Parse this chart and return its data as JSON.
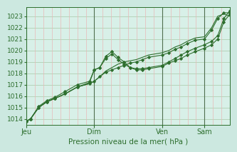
{
  "bg_color": "#cce8e0",
  "plot_bg_color": "#d8f0e8",
  "grid_color_h": "#a8c8a8",
  "grid_color_v_minor": "#e8b8b8",
  "grid_color_v_major": "#507050",
  "line_color": "#2d6e2d",
  "marker_color": "#2d6e2d",
  "xlabel": "Pression niveau de la mer( hPa )",
  "ylim": [
    1013.5,
    1023.8
  ],
  "yticks": [
    1014,
    1015,
    1016,
    1017,
    1018,
    1019,
    1020,
    1021,
    1022,
    1023
  ],
  "day_labels": [
    "Jeu",
    "Dim",
    "Ven",
    "Sam"
  ],
  "day_positions": [
    0.0,
    0.333,
    0.667,
    0.875
  ],
  "minor_positions": [
    0.0,
    0.042,
    0.083,
    0.125,
    0.167,
    0.208,
    0.25,
    0.292,
    0.333,
    0.375,
    0.417,
    0.458,
    0.5,
    0.542,
    0.583,
    0.625,
    0.667,
    0.708,
    0.75,
    0.792,
    0.833,
    0.875,
    0.917,
    0.958,
    1.0
  ],
  "series": {
    "s0_x": [
      0.0,
      0.02,
      0.06,
      0.1,
      0.14,
      0.19,
      0.25,
      0.31,
      0.333,
      0.36,
      0.39,
      0.42,
      0.45,
      0.48,
      0.51,
      0.54,
      0.57,
      0.6,
      0.667,
      0.7,
      0.73,
      0.76,
      0.79,
      0.83,
      0.875,
      0.91,
      0.94,
      0.97,
      1.0
    ],
    "s0_y": [
      1013.8,
      1014.0,
      1015.0,
      1015.5,
      1015.8,
      1016.2,
      1016.8,
      1017.1,
      1017.3,
      1017.7,
      1018.2,
      1018.5,
      1018.8,
      1019.0,
      1019.1,
      1019.2,
      1019.4,
      1019.6,
      1019.8,
      1020.0,
      1020.3,
      1020.5,
      1020.8,
      1021.1,
      1021.2,
      1022.0,
      1023.0,
      1023.2,
      1023.0
    ],
    "s1_x": [
      0.0,
      0.02,
      0.06,
      0.1,
      0.14,
      0.19,
      0.25,
      0.31,
      0.333,
      0.36,
      0.39,
      0.42,
      0.45,
      0.48,
      0.51,
      0.54,
      0.57,
      0.6,
      0.667,
      0.7,
      0.73,
      0.76,
      0.79,
      0.83,
      0.875,
      0.91,
      0.94,
      0.97,
      1.0
    ],
    "s1_y": [
      1013.8,
      1014.0,
      1015.0,
      1015.5,
      1015.8,
      1016.2,
      1016.8,
      1017.1,
      1017.3,
      1017.7,
      1018.1,
      1018.3,
      1018.5,
      1018.7,
      1018.9,
      1019.0,
      1019.2,
      1019.4,
      1019.6,
      1019.8,
      1020.1,
      1020.3,
      1020.6,
      1020.9,
      1021.0,
      1021.8,
      1022.8,
      1023.3,
      1023.3
    ],
    "s2_x": [
      0.0,
      0.02,
      0.06,
      0.1,
      0.14,
      0.19,
      0.25,
      0.31,
      0.333,
      0.36,
      0.39,
      0.42,
      0.45,
      0.48,
      0.51,
      0.54,
      0.57,
      0.6,
      0.667,
      0.7,
      0.73,
      0.76,
      0.79,
      0.83,
      0.875,
      0.91,
      0.94,
      0.97,
      1.0
    ],
    "s2_y": [
      1013.8,
      1014.0,
      1015.0,
      1015.5,
      1015.8,
      1016.2,
      1016.8,
      1017.2,
      1018.3,
      1018.5,
      1019.3,
      1019.7,
      1019.2,
      1018.8,
      1018.5,
      1018.3,
      1018.3,
      1018.4,
      1018.6,
      1018.9,
      1019.1,
      1019.3,
      1019.6,
      1019.9,
      1020.2,
      1020.5,
      1021.0,
      1022.5,
      1023.2
    ],
    "s3_x": [
      0.0,
      0.02,
      0.06,
      0.1,
      0.14,
      0.19,
      0.25,
      0.31,
      0.333,
      0.36,
      0.39,
      0.42,
      0.45,
      0.48,
      0.51,
      0.54,
      0.57,
      0.6,
      0.667,
      0.7,
      0.73,
      0.76,
      0.79,
      0.83,
      0.875,
      0.91,
      0.94,
      0.97,
      1.0
    ],
    "s3_y": [
      1013.8,
      1014.0,
      1015.1,
      1015.6,
      1015.9,
      1016.4,
      1017.0,
      1017.3,
      1018.3,
      1018.5,
      1019.5,
      1019.9,
      1019.4,
      1019.0,
      1018.5,
      1018.4,
      1018.4,
      1018.5,
      1018.7,
      1019.0,
      1019.3,
      1019.6,
      1019.9,
      1020.2,
      1020.5,
      1020.8,
      1021.3,
      1022.8,
      1023.5
    ]
  }
}
